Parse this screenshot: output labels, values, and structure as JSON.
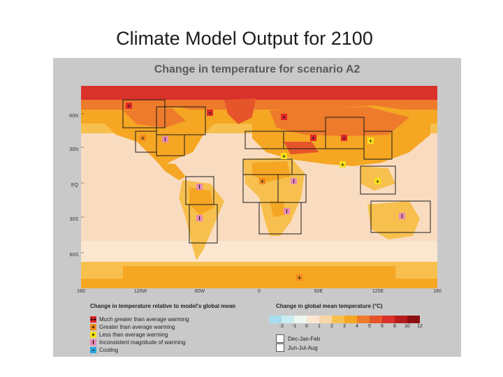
{
  "slide": {
    "title": "Climate Model Output for 2100"
  },
  "figure": {
    "title": "Change in temperature for scenario A2",
    "lat_labels": [
      "60N",
      "30N",
      "EQ",
      "30S",
      "60S"
    ],
    "lon_labels": [
      "180",
      "120W",
      "60W",
      "0",
      "60E",
      "120E",
      "180"
    ],
    "legend_left": {
      "title": "Change in temperature relative to model's global mean",
      "items": [
        {
          "symbol": "++",
          "color": "#e0262a",
          "label": "Much greater than average warming"
        },
        {
          "symbol": "+",
          "color": "#f28a1c",
          "label": "Greater than average warming"
        },
        {
          "symbol": "+",
          "color": "#f7e11b",
          "label": "Less than average warming"
        },
        {
          "symbol": "I",
          "color": "#e98ab6",
          "label": "Inconsistent magnitude of warming"
        },
        {
          "symbol": "–",
          "color": "#2aa6e0",
          "label": "Cooling"
        }
      ]
    },
    "legend_right": {
      "title": "Change in global mean temperature (°C)",
      "scale_labels": [
        "-2",
        "-1",
        "0",
        "1",
        "2",
        "3",
        "4",
        "5",
        "6",
        "8",
        "10",
        "12"
      ],
      "scale_colors": [
        "#a8dcf0",
        "#c8ecf2",
        "#eef6f0",
        "#fbe6d0",
        "#f9d6a6",
        "#f7c04e",
        "#f5a623",
        "#ee7a2b",
        "#e5542b",
        "#d8322a",
        "#b71c1c",
        "#8e0f0f"
      ],
      "seasons": [
        "Dec-Jan-Feb",
        "Jun-Jul-Aug"
      ]
    }
  }
}
